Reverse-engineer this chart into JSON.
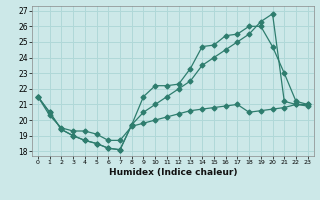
{
  "xlabel": "Humidex (Indice chaleur)",
  "background_color": "#cce8e8",
  "grid_color": "#b0d8d8",
  "line_color": "#2e7d6e",
  "xlim": [
    -0.5,
    23.5
  ],
  "ylim": [
    17.7,
    27.3
  ],
  "xticks": [
    0,
    1,
    2,
    3,
    4,
    5,
    6,
    7,
    8,
    9,
    10,
    11,
    12,
    13,
    14,
    15,
    16,
    17,
    18,
    19,
    20,
    21,
    22,
    23
  ],
  "yticks": [
    18,
    19,
    20,
    21,
    22,
    23,
    24,
    25,
    26,
    27
  ],
  "series1_x": [
    0,
    1,
    2,
    3,
    4,
    5,
    6,
    7,
    8,
    9,
    10,
    11,
    12,
    13,
    14,
    15,
    16,
    17,
    18,
    19,
    20,
    21,
    22,
    23
  ],
  "series1_y": [
    21.5,
    20.5,
    19.4,
    19.0,
    18.7,
    18.5,
    18.2,
    18.1,
    19.7,
    21.5,
    22.2,
    22.2,
    22.3,
    23.3,
    24.7,
    24.8,
    25.4,
    25.5,
    26.0,
    26.0,
    24.7,
    23.0,
    21.2,
    21.0
  ],
  "series2_x": [
    0,
    1,
    2,
    3,
    4,
    5,
    6,
    7,
    8,
    9,
    10,
    11,
    12,
    13,
    14,
    15,
    16,
    17,
    18,
    19,
    20,
    21,
    22,
    23
  ],
  "series2_y": [
    21.5,
    20.5,
    19.4,
    19.0,
    18.7,
    18.5,
    18.2,
    18.1,
    19.7,
    20.5,
    21.0,
    21.5,
    22.0,
    22.5,
    23.5,
    24.0,
    24.5,
    25.0,
    25.5,
    26.3,
    26.8,
    21.2,
    21.0,
    21.0
  ],
  "series3_x": [
    0,
    1,
    2,
    3,
    4,
    5,
    6,
    7,
    8,
    9,
    10,
    11,
    12,
    13,
    14,
    15,
    16,
    17,
    18,
    19,
    20,
    21,
    22,
    23
  ],
  "series3_y": [
    21.5,
    20.3,
    19.5,
    19.3,
    19.3,
    19.1,
    18.7,
    18.7,
    19.6,
    19.8,
    20.0,
    20.2,
    20.4,
    20.6,
    20.7,
    20.8,
    20.9,
    21.0,
    20.5,
    20.6,
    20.7,
    20.8,
    21.0,
    20.9
  ]
}
